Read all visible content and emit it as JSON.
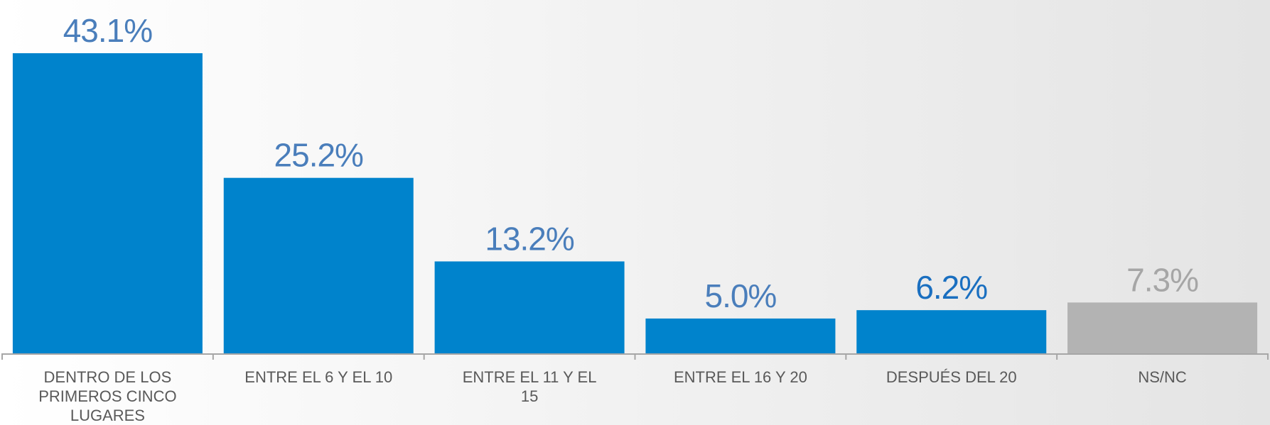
{
  "chart_data": {
    "type": "bar",
    "categories": [
      "DENTRO DE LOS PRIMEROS CINCO LUGARES",
      "ENTRE EL 6 Y EL 10",
      "ENTRE EL 11 Y EL 15",
      "ENTRE EL 16 Y 20",
      "DESPUÉS DEL 20",
      "NS/NC"
    ],
    "values": [
      43.1,
      25.2,
      13.2,
      5.0,
      6.2,
      7.3
    ],
    "value_labels": [
      "43.1%",
      "25.2%",
      "13.2%",
      "5.0%",
      "6.2%",
      "7.3%"
    ],
    "colors": [
      "#0083cc",
      "#0083cc",
      "#0083cc",
      "#0083cc",
      "#0083cc",
      "#b3b3b3"
    ],
    "label_colors": [
      "#4a7ebb",
      "#4a7ebb",
      "#4a7ebb",
      "#4a7ebb",
      "#1a6fc0",
      "#a6a6a6"
    ]
  }
}
